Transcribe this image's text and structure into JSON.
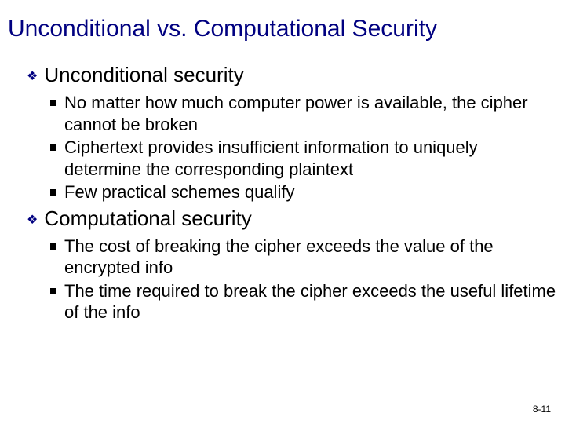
{
  "title": "Unconditional vs. Computational Security",
  "title_color": "#000080",
  "title_fontsize": 30,
  "background_color": "#ffffff",
  "sections": [
    {
      "heading": "Unconditional security",
      "heading_fontsize": 26,
      "heading_color": "#000000",
      "bullet_color": "#000080",
      "items": [
        "No matter how much computer power is available, the cipher cannot be broken",
        "Ciphertext provides insufficient information to uniquely determine the corresponding plaintext",
        "Few practical schemes qualify"
      ],
      "item_fontsize": 22,
      "item_bullet_color": "#000000"
    },
    {
      "heading": "Computational security",
      "heading_fontsize": 26,
      "heading_color": "#000000",
      "bullet_color": "#000080",
      "items": [
        "The cost of breaking the cipher exceeds the value of the encrypted info",
        "The time required to break the cipher exceeds the useful lifetime of the info"
      ],
      "item_fontsize": 22,
      "item_bullet_color": "#000000"
    }
  ],
  "page_number": "8-11",
  "page_number_fontsize": 12
}
